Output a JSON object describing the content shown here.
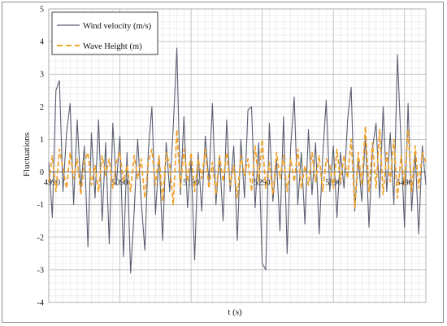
{
  "chart_data": {
    "type": "line",
    "title": "",
    "xlabel": "t (s)",
    "ylabel": "Fluctuations",
    "xlim": [
      4990,
      5520
    ],
    "ylim": [
      -4,
      5
    ],
    "x_ticks": [
      4990,
      5090,
      5190,
      5290,
      5390,
      5490
    ],
    "y_ticks": [
      -4,
      -3,
      -2,
      -1,
      0,
      1,
      2,
      3,
      4,
      5
    ],
    "grid": true,
    "legend_position": "top-left",
    "series": [
      {
        "name": "Wind velocity (m/s)",
        "color": "#5a5f70",
        "style": "solid",
        "x": [
          4990,
          4995,
          5000,
          5005,
          5010,
          5015,
          5020,
          5025,
          5030,
          5035,
          5040,
          5045,
          5050,
          5055,
          5060,
          5065,
          5070,
          5075,
          5080,
          5085,
          5090,
          5095,
          5100,
          5105,
          5110,
          5115,
          5120,
          5125,
          5130,
          5135,
          5140,
          5145,
          5150,
          5155,
          5160,
          5165,
          5170,
          5175,
          5180,
          5185,
          5190,
          5195,
          5200,
          5205,
          5210,
          5215,
          5220,
          5225,
          5230,
          5235,
          5240,
          5245,
          5250,
          5255,
          5260,
          5265,
          5270,
          5275,
          5280,
          5285,
          5290,
          5295,
          5300,
          5305,
          5310,
          5315,
          5320,
          5325,
          5330,
          5335,
          5340,
          5345,
          5350,
          5355,
          5360,
          5365,
          5370,
          5375,
          5380,
          5385,
          5390,
          5395,
          5400,
          5405,
          5410,
          5415,
          5420,
          5425,
          5430,
          5435,
          5440,
          5445,
          5450,
          5455,
          5460,
          5465,
          5470,
          5475,
          5480,
          5485,
          5490,
          5495,
          5500,
          5505,
          5510,
          5515,
          5520
        ],
        "values": [
          0.3,
          -1.4,
          2.5,
          2.8,
          -0.6,
          1.2,
          2.1,
          -1.0,
          1.6,
          -0.5,
          0.8,
          -2.3,
          1.2,
          -0.8,
          1.6,
          -1.5,
          0.9,
          -2.2,
          1.5,
          -0.4,
          1.1,
          -2.6,
          0.6,
          -3.1,
          -1.2,
          1.0,
          -0.9,
          -2.4,
          0.7,
          2.0,
          -1.3,
          0.5,
          -2.1,
          0.9,
          -0.6,
          1.4,
          3.8,
          -0.7,
          1.7,
          -1.1,
          0.4,
          -2.7,
          0.6,
          -1.2,
          1.1,
          -0.3,
          2.1,
          -1.0,
          0.5,
          -1.5,
          1.6,
          -0.6,
          0.8,
          -2.1,
          1.0,
          -0.8,
          1.9,
          2.0,
          -1.1,
          0.9,
          -2.8,
          -3.0,
          1.5,
          -0.9,
          0.4,
          -1.8,
          1.7,
          -2.5,
          0.8,
          2.3,
          -1.0,
          0.6,
          -1.6,
          1.3,
          -0.7,
          0.9,
          -1.9,
          0.5,
          2.2,
          -0.6,
          0.8,
          -1.4,
          0.6,
          -0.5,
          1.6,
          2.6,
          -1.2,
          0.4,
          -0.9,
          1.1,
          -1.7,
          0.7,
          1.5,
          -0.8,
          2.0,
          -0.6,
          1.2,
          -1.0,
          3.6,
          0.9,
          -1.7,
          2.1,
          -1.2,
          0.6,
          -1.9,
          0.8,
          -0.4
        ]
      },
      {
        "name": "Wave Height (m)",
        "color": "#f0a22c",
        "style": "dashed",
        "x": [
          4990,
          4995,
          5000,
          5005,
          5010,
          5015,
          5020,
          5025,
          5030,
          5035,
          5040,
          5045,
          5050,
          5055,
          5060,
          5065,
          5070,
          5075,
          5080,
          5085,
          5090,
          5095,
          5100,
          5105,
          5110,
          5115,
          5120,
          5125,
          5130,
          5135,
          5140,
          5145,
          5150,
          5155,
          5160,
          5165,
          5170,
          5175,
          5180,
          5185,
          5190,
          5195,
          5200,
          5205,
          5210,
          5215,
          5220,
          5225,
          5230,
          5235,
          5240,
          5245,
          5250,
          5255,
          5260,
          5265,
          5270,
          5275,
          5280,
          5285,
          5290,
          5295,
          5300,
          5305,
          5310,
          5315,
          5320,
          5325,
          5330,
          5335,
          5340,
          5345,
          5350,
          5355,
          5360,
          5365,
          5370,
          5375,
          5380,
          5385,
          5390,
          5395,
          5400,
          5405,
          5410,
          5415,
          5420,
          5425,
          5430,
          5435,
          5440,
          5445,
          5450,
          5455,
          5460,
          5465,
          5470,
          5475,
          5480,
          5485,
          5490,
          5495,
          5500,
          5505,
          5510,
          5515,
          5520
        ],
        "values": [
          -0.3,
          0.5,
          -0.6,
          0.7,
          0.1,
          -0.5,
          0.6,
          -0.2,
          0.4,
          -0.7,
          0.3,
          0.6,
          -0.4,
          0.2,
          -0.6,
          0.5,
          -0.1,
          0.4,
          -0.5,
          0.3,
          0.6,
          -0.3,
          0.2,
          -0.6,
          0.5,
          -0.2,
          0.4,
          -0.8,
          0.3,
          0.7,
          -0.4,
          0.5,
          -0.9,
          0.6,
          0.2,
          -1.0,
          1.3,
          -0.5,
          0.7,
          -0.3,
          0.6,
          -0.6,
          0.4,
          -0.2,
          0.7,
          -0.5,
          0.3,
          -0.7,
          0.5,
          -0.3,
          0.6,
          -0.4,
          0.2,
          -0.8,
          0.5,
          -0.1,
          0.4,
          -0.6,
          0.8,
          -0.3,
          1.0,
          -0.5,
          0.3,
          -0.7,
          0.6,
          -0.2,
          0.5,
          -0.6,
          0.4,
          -0.3,
          0.7,
          -0.5,
          0.2,
          -0.4,
          0.6,
          -0.3,
          0.5,
          -0.6,
          0.4,
          0.2,
          -0.5,
          0.7,
          -0.3,
          0.5,
          -0.2,
          1.0,
          -1.1,
          0.6,
          -0.4,
          1.4,
          -0.6,
          0.9,
          -0.5,
          1.3,
          -0.7,
          0.6,
          -0.3,
          1.0,
          -0.8,
          0.5,
          -0.4,
          1.3,
          -0.6,
          0.8,
          -0.5,
          0.6,
          0.3
        ]
      }
    ]
  }
}
